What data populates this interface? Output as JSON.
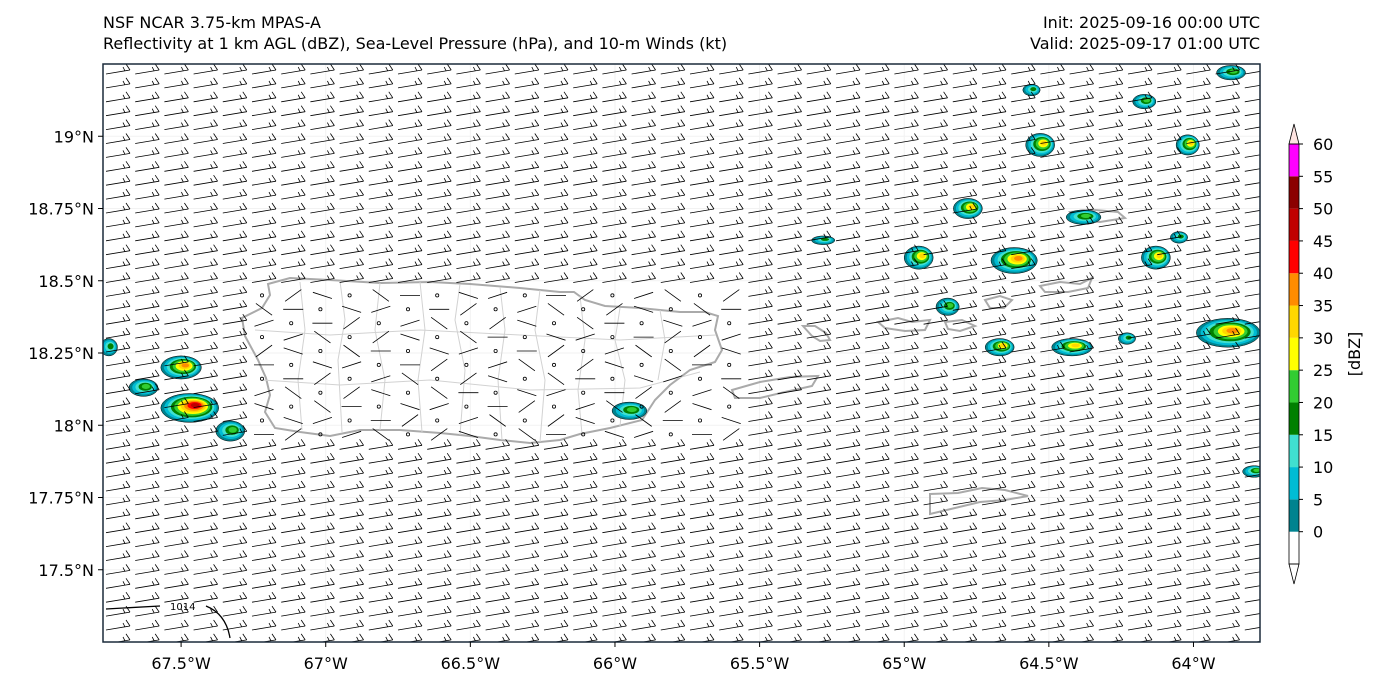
{
  "header": {
    "model_title": "NSF NCAR 3.75-km MPAS-A",
    "field_title": "Reflectivity at 1 km AGL (dBZ), Sea-Level Pressure (hPa), and 10-m Winds (kt)",
    "init": "Init: 2025-09-16 00:00 UTC",
    "valid": "Valid: 2025-09-17 01:00 UTC"
  },
  "map": {
    "lon_range": [
      -67.77,
      -63.77
    ],
    "lat_range": [
      17.25,
      19.25
    ],
    "lat_ticks": [
      {
        "value": 19.0,
        "label": "19°N"
      },
      {
        "value": 18.75,
        "label": "18.75°N"
      },
      {
        "value": 18.5,
        "label": "18.5°N"
      },
      {
        "value": 18.25,
        "label": "18.25°N"
      },
      {
        "value": 18.0,
        "label": "18°N"
      },
      {
        "value": 17.75,
        "label": "17.75°N"
      },
      {
        "value": 17.5,
        "label": "17.5°N"
      }
    ],
    "lon_ticks": [
      {
        "value": -67.5,
        "label": "67.5°W"
      },
      {
        "value": -67.0,
        "label": "67°W"
      },
      {
        "value": -66.5,
        "label": "66.5°W"
      },
      {
        "value": -66.0,
        "label": "66°W"
      },
      {
        "value": -65.5,
        "label": "65.5°W"
      },
      {
        "value": -65.0,
        "label": "65°W"
      },
      {
        "value": -64.5,
        "label": "64.5°W"
      },
      {
        "value": -64.0,
        "label": "64°W"
      }
    ],
    "isobar_label": "1014",
    "wind": {
      "unit": "kt",
      "typical_direction": "easterly",
      "typical_speed_kt": 15
    },
    "storm_cells": [
      {
        "lon": -67.47,
        "lat": 18.06,
        "rx_deg": 0.1,
        "ry_deg": 0.05,
        "max_dbz": 45
      },
      {
        "lon": -67.5,
        "lat": 18.2,
        "rx_deg": 0.07,
        "ry_deg": 0.04,
        "max_dbz": 35
      },
      {
        "lon": -67.63,
        "lat": 18.13,
        "rx_deg": 0.05,
        "ry_deg": 0.03,
        "max_dbz": 20
      },
      {
        "lon": -67.33,
        "lat": 17.98,
        "rx_deg": 0.05,
        "ry_deg": 0.035,
        "max_dbz": 20
      },
      {
        "lon": -67.75,
        "lat": 18.27,
        "rx_deg": 0.03,
        "ry_deg": 0.03,
        "max_dbz": 15
      },
      {
        "lon": -65.95,
        "lat": 18.05,
        "rx_deg": 0.06,
        "ry_deg": 0.03,
        "max_dbz": 20
      },
      {
        "lon": -64.95,
        "lat": 18.58,
        "rx_deg": 0.05,
        "ry_deg": 0.04,
        "max_dbz": 30
      },
      {
        "lon": -64.78,
        "lat": 18.75,
        "rx_deg": 0.05,
        "ry_deg": 0.035,
        "max_dbz": 30
      },
      {
        "lon": -64.62,
        "lat": 18.57,
        "rx_deg": 0.08,
        "ry_deg": 0.045,
        "max_dbz": 35
      },
      {
        "lon": -64.53,
        "lat": 18.97,
        "rx_deg": 0.05,
        "ry_deg": 0.04,
        "max_dbz": 30
      },
      {
        "lon": -64.85,
        "lat": 18.41,
        "rx_deg": 0.04,
        "ry_deg": 0.03,
        "max_dbz": 20
      },
      {
        "lon": -64.67,
        "lat": 18.27,
        "rx_deg": 0.05,
        "ry_deg": 0.03,
        "max_dbz": 30
      },
      {
        "lon": -64.42,
        "lat": 18.27,
        "rx_deg": 0.07,
        "ry_deg": 0.03,
        "max_dbz": 30
      },
      {
        "lon": -64.38,
        "lat": 18.72,
        "rx_deg": 0.06,
        "ry_deg": 0.025,
        "max_dbz": 20
      },
      {
        "lon": -64.13,
        "lat": 18.58,
        "rx_deg": 0.05,
        "ry_deg": 0.04,
        "max_dbz": 30
      },
      {
        "lon": -63.88,
        "lat": 18.32,
        "rx_deg": 0.11,
        "ry_deg": 0.05,
        "max_dbz": 35
      },
      {
        "lon": -64.02,
        "lat": 18.97,
        "rx_deg": 0.04,
        "ry_deg": 0.035,
        "max_dbz": 30
      },
      {
        "lon": -64.17,
        "lat": 19.12,
        "rx_deg": 0.04,
        "ry_deg": 0.025,
        "max_dbz": 20
      },
      {
        "lon": -63.87,
        "lat": 19.22,
        "rx_deg": 0.05,
        "ry_deg": 0.025,
        "max_dbz": 20
      },
      {
        "lon": -64.56,
        "lat": 19.16,
        "rx_deg": 0.03,
        "ry_deg": 0.02,
        "max_dbz": 15
      },
      {
        "lon": -65.28,
        "lat": 18.64,
        "rx_deg": 0.04,
        "ry_deg": 0.015,
        "max_dbz": 15
      },
      {
        "lon": -63.79,
        "lat": 17.84,
        "rx_deg": 0.04,
        "ry_deg": 0.02,
        "max_dbz": 20
      },
      {
        "lon": -64.05,
        "lat": 18.65,
        "rx_deg": 0.03,
        "ry_deg": 0.02,
        "max_dbz": 15
      },
      {
        "lon": -64.23,
        "lat": 18.3,
        "rx_deg": 0.03,
        "ry_deg": 0.02,
        "max_dbz": 15
      }
    ]
  },
  "colorbar": {
    "label": "[dBZ]",
    "ticks": [
      "60",
      "55",
      "50",
      "45",
      "40",
      "35",
      "30",
      "25",
      "20",
      "15",
      "10",
      "5",
      "0"
    ],
    "bins": [
      {
        "lo": 0,
        "hi": 5,
        "color": "#00838f"
      },
      {
        "lo": 5,
        "hi": 10,
        "color": "#00bcd4"
      },
      {
        "lo": 10,
        "hi": 15,
        "color": "#40e0d0"
      },
      {
        "lo": 15,
        "hi": 20,
        "color": "#008000"
      },
      {
        "lo": 20,
        "hi": 25,
        "color": "#32cd32"
      },
      {
        "lo": 25,
        "hi": 30,
        "color": "#ffff00"
      },
      {
        "lo": 30,
        "hi": 35,
        "color": "#ffd700"
      },
      {
        "lo": 35,
        "hi": 40,
        "color": "#ff8c00"
      },
      {
        "lo": 40,
        "hi": 45,
        "color": "#ff0000"
      },
      {
        "lo": 45,
        "hi": 50,
        "color": "#c00000"
      },
      {
        "lo": 50,
        "hi": 55,
        "color": "#8b0000"
      },
      {
        "lo": 55,
        "hi": 60,
        "color": "#ff00ff"
      },
      {
        "lo": 60,
        "hi": 65,
        "color": "#ffe4e1"
      }
    ]
  }
}
